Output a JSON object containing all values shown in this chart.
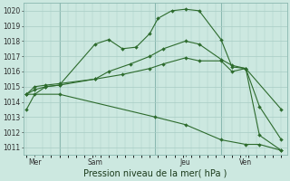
{
  "xlabel": "Pression niveau de la mer( hPa )",
  "bg_color": "#cce8e0",
  "line_color": "#2d6b2d",
  "grid_color": "#a8ccc4",
  "vline_color": "#8ab8b0",
  "ylim": [
    1010.5,
    1020.5
  ],
  "xlim": [
    -0.1,
    9.5
  ],
  "ytick_values": [
    1011,
    1012,
    1013,
    1014,
    1015,
    1016,
    1017,
    1018,
    1019,
    1020
  ],
  "xtick_positions": [
    0.3,
    2.5,
    5.8,
    8.0
  ],
  "xtick_labels": [
    "Mer",
    "Sam",
    "Jeu",
    "Ven"
  ],
  "vline_positions": [
    1.2,
    4.7,
    7.1
  ],
  "series": [
    {
      "x": [
        0.0,
        0.3,
        0.7,
        1.2,
        2.5,
        3.0,
        3.5,
        4.0,
        4.5,
        4.8,
        5.3,
        5.8,
        6.3,
        7.1,
        7.5,
        8.0,
        9.3
      ],
      "y": [
        1013.5,
        1014.5,
        1015.0,
        1015.1,
        1017.8,
        1018.1,
        1017.5,
        1017.6,
        1018.5,
        1019.5,
        1020.0,
        1020.1,
        1020.0,
        1018.1,
        1016.3,
        1016.2,
        1013.5
      ]
    },
    {
      "x": [
        0.0,
        0.3,
        0.7,
        1.2,
        2.5,
        3.0,
        3.8,
        4.5,
        5.0,
        5.8,
        6.3,
        7.1,
        7.5,
        8.0,
        8.5,
        9.3
      ],
      "y": [
        1014.5,
        1014.8,
        1015.0,
        1015.1,
        1015.5,
        1016.0,
        1016.5,
        1017.0,
        1017.5,
        1018.0,
        1017.8,
        1016.8,
        1016.4,
        1016.2,
        1013.7,
        1011.5
      ]
    },
    {
      "x": [
        0.0,
        0.3,
        0.7,
        1.2,
        2.5,
        3.5,
        4.5,
        5.0,
        5.8,
        6.3,
        7.1,
        7.5,
        8.0,
        8.5,
        9.3
      ],
      "y": [
        1014.5,
        1015.0,
        1015.1,
        1015.2,
        1015.5,
        1015.8,
        1016.2,
        1016.5,
        1016.9,
        1016.7,
        1016.7,
        1016.0,
        1016.2,
        1011.8,
        1010.8
      ]
    },
    {
      "x": [
        0.0,
        1.2,
        4.7,
        5.8,
        7.1,
        8.0,
        8.5,
        9.3
      ],
      "y": [
        1014.5,
        1014.5,
        1013.0,
        1012.5,
        1011.5,
        1011.2,
        1011.2,
        1010.8
      ]
    }
  ],
  "font_size_ticks": 5.5,
  "font_size_xlabel": 7.0,
  "marker_size": 2.0,
  "lw": 0.8
}
